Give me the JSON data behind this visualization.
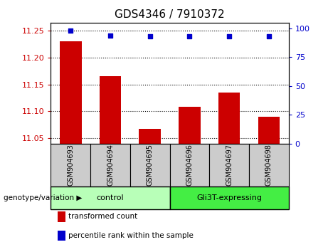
{
  "title": "GDS4346 / 7910372",
  "samples": [
    "GSM904693",
    "GSM904694",
    "GSM904695",
    "GSM904696",
    "GSM904697",
    "GSM904698"
  ],
  "transformed_counts": [
    11.23,
    11.165,
    11.068,
    11.108,
    11.135,
    11.09
  ],
  "percentile_ranks": [
    98,
    94,
    93,
    93,
    93,
    93
  ],
  "ylim_left": [
    11.04,
    11.265
  ],
  "ylim_right": [
    0,
    105
  ],
  "yticks_left": [
    11.05,
    11.1,
    11.15,
    11.2,
    11.25
  ],
  "yticks_right": [
    0,
    25,
    50,
    75,
    100
  ],
  "bar_color": "#cc0000",
  "dot_color": "#0000cc",
  "sample_box_color": "#cccccc",
  "group_colors": [
    "#b8ffb8",
    "#44ee44"
  ],
  "group_labels": [
    "control",
    "Gli3T-expressing"
  ],
  "group_ranges": [
    [
      0,
      3
    ],
    [
      3,
      6
    ]
  ],
  "legend_labels": [
    "transformed count",
    "percentile rank within the sample"
  ],
  "legend_colors": [
    "#cc0000",
    "#0000cc"
  ],
  "xlabel_left": "genotype/variation",
  "bar_bottom": 11.04,
  "tick_label_color_left": "#cc0000",
  "tick_label_color_right": "#0000cc",
  "dotted_lines": [
    11.05,
    11.1,
    11.15,
    11.2,
    11.25
  ]
}
